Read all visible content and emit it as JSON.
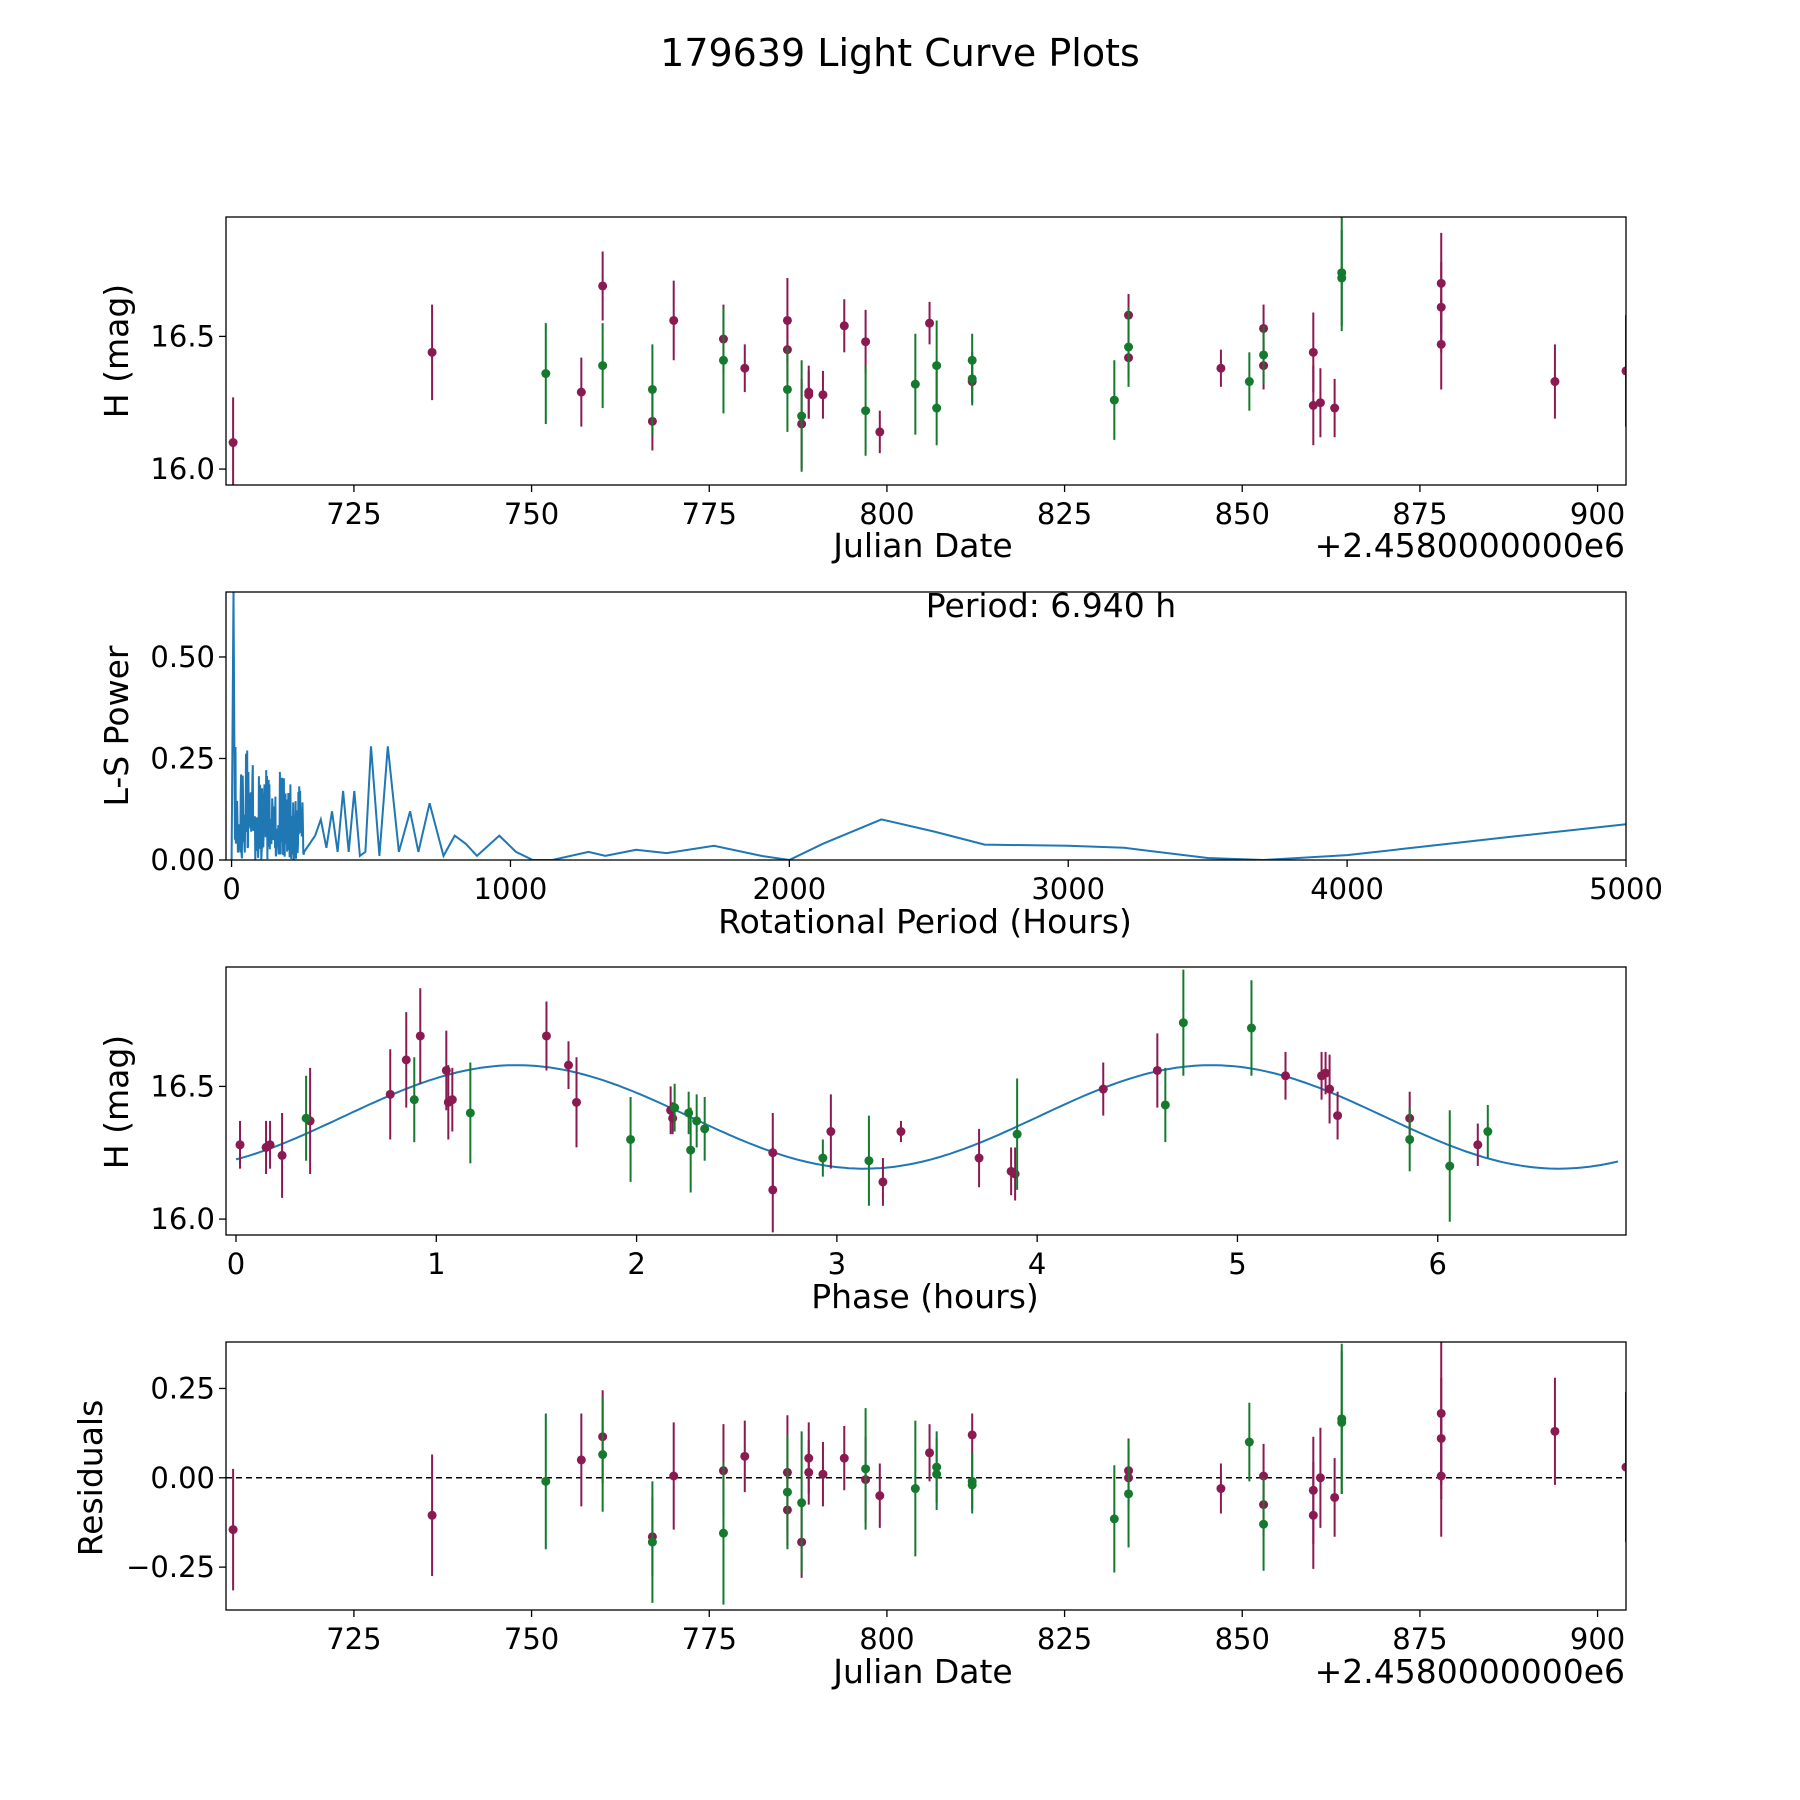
{
  "figure": {
    "title": "179639 Light Curve Plots"
  },
  "colors": {
    "red": "#8b1a52",
    "green": "#157a2e",
    "line": "#1f77b4",
    "axis": "#000000"
  },
  "chart_data": [
    {
      "id": "lightcurve",
      "type": "scatter",
      "xlabel": "Julian Date",
      "ylabel": "H (mag)",
      "offset_text": "+2.4580000000e6",
      "xlim": [
        707,
        904
      ],
      "ylim": [
        15.94,
        16.95
      ],
      "xticks": [
        725,
        750,
        775,
        800,
        825,
        850,
        875,
        900
      ],
      "xticklabels": [
        "725",
        "750",
        "775",
        "800",
        "825",
        "850",
        "875",
        "900"
      ],
      "yticks": [
        16.0,
        16.5
      ],
      "yticklabels": [
        "16.0",
        "16.5"
      ],
      "series": [
        {
          "name": "red",
          "color": "red",
          "points": [
            [
              708,
              16.1,
              0.17
            ],
            [
              736,
              16.44,
              0.18
            ],
            [
              757,
              16.29,
              0.13
            ],
            [
              760,
              16.69,
              0.13
            ],
            [
              767,
              16.18,
              0.11
            ],
            [
              770,
              16.56,
              0.15
            ],
            [
              777,
              16.49,
              0.13
            ],
            [
              780,
              16.38,
              0.09
            ],
            [
              786,
              16.56,
              0.16
            ],
            [
              786,
              16.45,
              0.12
            ],
            [
              788,
              16.17,
              0.17
            ],
            [
              789,
              16.29,
              0.1
            ],
            [
              789,
              16.28,
              0.09
            ],
            [
              791,
              16.28,
              0.09
            ],
            [
              794,
              16.54,
              0.1
            ],
            [
              797,
              16.48,
              0.12
            ],
            [
              799,
              16.14,
              0.08
            ],
            [
              806,
              16.55,
              0.08
            ],
            [
              812,
              16.33,
              0.08
            ],
            [
              834,
              16.58,
              0.08
            ],
            [
              834,
              16.42,
              0.08
            ],
            [
              847,
              16.38,
              0.07
            ],
            [
              853,
              16.53,
              0.09
            ],
            [
              853,
              16.39,
              0.09
            ],
            [
              860,
              16.44,
              0.15
            ],
            [
              860,
              16.24,
              0.15
            ],
            [
              861,
              16.25,
              0.13
            ],
            [
              863,
              16.23,
              0.11
            ],
            [
              878,
              16.7,
              0.19
            ],
            [
              878,
              16.61,
              0.17
            ],
            [
              878,
              16.47,
              0.17
            ],
            [
              894,
              16.33,
              0.14
            ],
            [
              904,
              16.37,
              0.21
            ]
          ]
        },
        {
          "name": "green",
          "color": "green",
          "points": [
            [
              752,
              16.36,
              0.19
            ],
            [
              760,
              16.39,
              0.16
            ],
            [
              767,
              16.3,
              0.17
            ],
            [
              777,
              16.41,
              0.2
            ],
            [
              786,
              16.3,
              0.16
            ],
            [
              788,
              16.2,
              0.21
            ],
            [
              797,
              16.22,
              0.17
            ],
            [
              804,
              16.32,
              0.19
            ],
            [
              807,
              16.39,
              0.17
            ],
            [
              807,
              16.23,
              0.14
            ],
            [
              812,
              16.34,
              0.1
            ],
            [
              812,
              16.41,
              0.1
            ],
            [
              832,
              16.26,
              0.15
            ],
            [
              834,
              16.46,
              0.15
            ],
            [
              851,
              16.33,
              0.11
            ],
            [
              853,
              16.43,
              0.11
            ],
            [
              864,
              16.74,
              0.22
            ],
            [
              864,
              16.72,
              0.18
            ]
          ]
        }
      ]
    },
    {
      "id": "periodogram",
      "type": "line",
      "xlabel": "Rotational Period (Hours)",
      "ylabel": "L-S Power",
      "annotation": "Period: 6.940 h",
      "xlim": [
        -20,
        5000
      ],
      "ylim": [
        0,
        0.66
      ],
      "xticks": [
        0,
        1000,
        2000,
        3000,
        4000,
        5000
      ],
      "xticklabels": [
        "0",
        "1000",
        "2000",
        "3000",
        "4000",
        "5000"
      ],
      "yticks": [
        0.0,
        0.25,
        0.5
      ],
      "yticklabels": [
        "0.00",
        "0.25",
        "0.50"
      ],
      "smooth_curve": [
        [
          260,
          0.02
        ],
        [
          300,
          0.06
        ],
        [
          320,
          0.1
        ],
        [
          340,
          0.03
        ],
        [
          360,
          0.12
        ],
        [
          380,
          0.02
        ],
        [
          400,
          0.17
        ],
        [
          420,
          0.02
        ],
        [
          440,
          0.17
        ],
        [
          460,
          0.01
        ],
        [
          480,
          0.02
        ],
        [
          500,
          0.28
        ],
        [
          530,
          0.01
        ],
        [
          560,
          0.28
        ],
        [
          600,
          0.02
        ],
        [
          640,
          0.12
        ],
        [
          670,
          0.02
        ],
        [
          710,
          0.14
        ],
        [
          760,
          0.01
        ],
        [
          800,
          0.06
        ],
        [
          840,
          0.04
        ],
        [
          880,
          0.01
        ],
        [
          960,
          0.06
        ],
        [
          1020,
          0.02
        ],
        [
          1080,
          0.0
        ],
        [
          1150,
          0.0
        ],
        [
          1280,
          0.02
        ],
        [
          1340,
          0.01
        ],
        [
          1450,
          0.025
        ],
        [
          1560,
          0.017
        ],
        [
          1730,
          0.035
        ],
        [
          1900,
          0.01
        ],
        [
          2000,
          0.0
        ],
        [
          2120,
          0.04
        ],
        [
          2330,
          0.1
        ],
        [
          2520,
          0.07
        ],
        [
          2700,
          0.038
        ],
        [
          3000,
          0.035
        ],
        [
          3200,
          0.03
        ],
        [
          3500,
          0.005
        ],
        [
          3700,
          0.0
        ],
        [
          4000,
          0.012
        ],
        [
          4300,
          0.035
        ],
        [
          4600,
          0.058
        ],
        [
          5000,
          0.088
        ]
      ],
      "noisy_segment": {
        "start": 0,
        "end": 260,
        "steps": 170,
        "peak_period": 6.94,
        "peak_power": 0.66
      }
    },
    {
      "id": "phased",
      "type": "scatter",
      "xlabel": "Phase (hours)",
      "ylabel": "H (mag)",
      "xlim": [
        -0.05,
        6.94
      ],
      "ylim": [
        15.94,
        16.95
      ],
      "xticks": [
        0,
        1,
        2,
        3,
        4,
        5,
        6
      ],
      "xticklabels": [
        "0",
        "1",
        "2",
        "3",
        "4",
        "5",
        "6"
      ],
      "yticks": [
        16.0,
        16.5
      ],
      "yticklabels": [
        "16.0",
        "16.5"
      ],
      "model": {
        "mean": 16.385,
        "amplitude": 0.195,
        "period": 3.47,
        "peak_phase": 1.4,
        "x_range": [
          0,
          6.9
        ]
      },
      "series": [
        {
          "name": "red",
          "color": "red",
          "points": [
            [
              0.02,
              16.28,
              0.09
            ],
            [
              0.15,
              16.27,
              0.1
            ],
            [
              0.17,
              16.28,
              0.09
            ],
            [
              0.23,
              16.24,
              0.16
            ],
            [
              0.37,
              16.37,
              0.2
            ],
            [
              0.77,
              16.47,
              0.17
            ],
            [
              0.85,
              16.6,
              0.18
            ],
            [
              0.92,
              16.69,
              0.18
            ],
            [
              1.05,
              16.56,
              0.15
            ],
            [
              1.06,
              16.44,
              0.14
            ],
            [
              1.08,
              16.45,
              0.12
            ],
            [
              1.55,
              16.69,
              0.13
            ],
            [
              1.66,
              16.58,
              0.09
            ],
            [
              1.7,
              16.44,
              0.17
            ],
            [
              2.17,
              16.41,
              0.09
            ],
            [
              2.18,
              16.38,
              0.06
            ],
            [
              2.68,
              16.25,
              0.15
            ],
            [
              2.68,
              16.11,
              0.16
            ],
            [
              2.97,
              16.33,
              0.14
            ],
            [
              3.23,
              16.14,
              0.09
            ],
            [
              3.32,
              16.33,
              0.04
            ],
            [
              3.71,
              16.23,
              0.11
            ],
            [
              3.87,
              16.18,
              0.09
            ],
            [
              3.89,
              16.17,
              0.1
            ],
            [
              4.33,
              16.49,
              0.1
            ],
            [
              4.6,
              16.56,
              0.14
            ],
            [
              5.24,
              16.54,
              0.09
            ],
            [
              5.42,
              16.54,
              0.09
            ],
            [
              5.44,
              16.55,
              0.08
            ],
            [
              5.46,
              16.49,
              0.13
            ],
            [
              5.5,
              16.39,
              0.09
            ],
            [
              5.86,
              16.38,
              0.1
            ],
            [
              6.2,
              16.28,
              0.08
            ]
          ]
        },
        {
          "name": "green",
          "color": "green",
          "points": [
            [
              0.35,
              16.38,
              0.16
            ],
            [
              0.89,
              16.45,
              0.16
            ],
            [
              1.17,
              16.4,
              0.19
            ],
            [
              1.97,
              16.3,
              0.16
            ],
            [
              2.19,
              16.42,
              0.09
            ],
            [
              2.26,
              16.4,
              0.08
            ],
            [
              2.27,
              16.26,
              0.16
            ],
            [
              2.3,
              16.37,
              0.1
            ],
            [
              2.34,
              16.34,
              0.12
            ],
            [
              2.93,
              16.23,
              0.07
            ],
            [
              3.16,
              16.22,
              0.17
            ],
            [
              3.9,
              16.32,
              0.21
            ],
            [
              4.64,
              16.43,
              0.14
            ],
            [
              4.73,
              16.74,
              0.2
            ],
            [
              5.07,
              16.72,
              0.18
            ],
            [
              5.86,
              16.3,
              0.12
            ],
            [
              6.06,
              16.2,
              0.21
            ],
            [
              6.25,
              16.33,
              0.1
            ]
          ]
        }
      ]
    },
    {
      "id": "residuals",
      "type": "scatter",
      "xlabel": "Julian Date",
      "ylabel": "Residuals",
      "offset_text": "+2.4580000000e6",
      "xlim": [
        707,
        904
      ],
      "ylim": [
        -0.37,
        0.38
      ],
      "xticks": [
        725,
        750,
        775,
        800,
        825,
        850,
        875,
        900
      ],
      "xticklabels": [
        "725",
        "750",
        "775",
        "800",
        "825",
        "850",
        "875",
        "900"
      ],
      "yticks": [
        -0.25,
        0.0,
        0.25
      ],
      "yticklabels": [
        "−0.25",
        "0.00",
        "0.25"
      ],
      "zero_line": true,
      "series": [
        {
          "name": "red",
          "color": "red",
          "points": [
            [
              708,
              -0.145,
              0.17
            ],
            [
              736,
              -0.105,
              0.17
            ],
            [
              757,
              0.05,
              0.13
            ],
            [
              760,
              0.115,
              0.13
            ],
            [
              767,
              -0.165,
              0.11
            ],
            [
              770,
              0.005,
              0.15
            ],
            [
              777,
              0.02,
              0.13
            ],
            [
              780,
              0.06,
              0.1
            ],
            [
              786,
              0.015,
              0.16
            ],
            [
              786,
              -0.09,
              0.1
            ],
            [
              788,
              -0.18,
              0.1
            ],
            [
              789,
              0.055,
              0.1
            ],
            [
              789,
              0.015,
              0.09
            ],
            [
              791,
              0.01,
              0.09
            ],
            [
              794,
              0.055,
              0.09
            ],
            [
              797,
              -0.005,
              0.12
            ],
            [
              799,
              -0.05,
              0.09
            ],
            [
              806,
              0.07,
              0.08
            ],
            [
              812,
              0.12,
              0.06
            ],
            [
              834,
              0.02,
              0.09
            ],
            [
              834,
              0.0,
              0.09
            ],
            [
              847,
              -0.03,
              0.07
            ],
            [
              853,
              0.005,
              0.09
            ],
            [
              853,
              -0.075,
              0.09
            ],
            [
              860,
              -0.035,
              0.15
            ],
            [
              860,
              -0.105,
              0.15
            ],
            [
              861,
              0.0,
              0.14
            ],
            [
              863,
              -0.055,
              0.11
            ],
            [
              878,
              0.18,
              0.2
            ],
            [
              878,
              0.11,
              0.17
            ],
            [
              878,
              0.005,
              0.17
            ],
            [
              894,
              0.13,
              0.15
            ],
            [
              904,
              0.03,
              0.21
            ]
          ]
        },
        {
          "name": "green",
          "color": "green",
          "points": [
            [
              752,
              -0.01,
              0.19
            ],
            [
              760,
              0.065,
              0.16
            ],
            [
              767,
              -0.18,
              0.17
            ],
            [
              777,
              -0.155,
              0.2
            ],
            [
              786,
              -0.04,
              0.16
            ],
            [
              788,
              -0.07,
              0.2
            ],
            [
              797,
              0.025,
              0.17
            ],
            [
              804,
              -0.03,
              0.19
            ],
            [
              807,
              0.03,
              0.1
            ],
            [
              807,
              0.01,
              0.1
            ],
            [
              812,
              -0.01,
              0.08
            ],
            [
              812,
              -0.02,
              0.08
            ],
            [
              832,
              -0.115,
              0.15
            ],
            [
              834,
              -0.045,
              0.15
            ],
            [
              851,
              0.1,
              0.11
            ],
            [
              853,
              -0.13,
              0.13
            ],
            [
              864,
              0.165,
              0.21
            ],
            [
              864,
              0.155,
              0.2
            ]
          ]
        }
      ]
    }
  ]
}
